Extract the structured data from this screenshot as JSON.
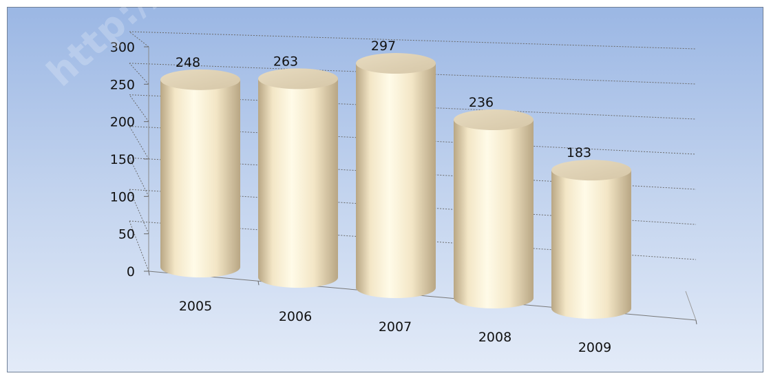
{
  "watermark": "http://pac",
  "chart_data": {
    "type": "bar",
    "style": "3d-cylinder",
    "categories": [
      "2005",
      "2006",
      "2007",
      "2008",
      "2009"
    ],
    "values": [
      248,
      263,
      297,
      236,
      183
    ],
    "data_labels": [
      "248",
      "263",
      "297",
      "236",
      "183"
    ],
    "y_ticks": [
      "0",
      "50",
      "100",
      "150",
      "200",
      "250",
      "300"
    ],
    "ylim": [
      0,
      300
    ],
    "title": "",
    "xlabel": "",
    "ylabel": "",
    "grid": true,
    "legend": "none",
    "colors": {
      "background_top": "#9bb7e4",
      "background_bottom": "#e3ebf8",
      "bar_light": "#fffbe8",
      "bar_mid": "#f3e6c6",
      "bar_dark": "#b8a684",
      "top_face": "#d6c7a8",
      "gridline": "#6a6a6a"
    }
  }
}
